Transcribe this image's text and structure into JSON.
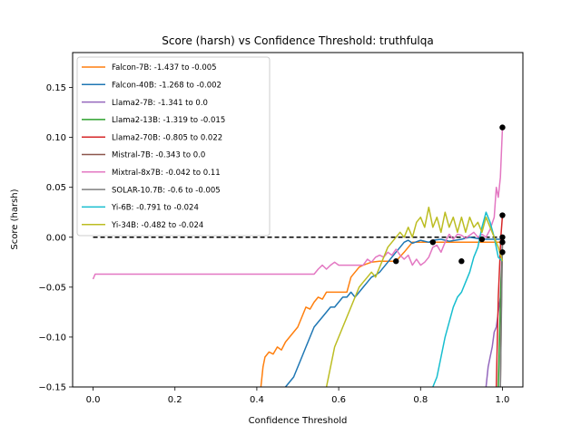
{
  "chart_data": {
    "type": "line",
    "title": "Score (harsh) vs Confidence Threshold: truthfulqa",
    "xlabel": "Confidence Threshold",
    "ylabel": "Score (harsh)",
    "xlim": [
      -0.05,
      1.05
    ],
    "ylim": [
      -0.15,
      0.185
    ],
    "x_ticks": [
      0.0,
      0.2,
      0.4,
      0.6,
      0.8,
      1.0
    ],
    "x_tick_labels": [
      "0.0",
      "0.2",
      "0.4",
      "0.6",
      "0.8",
      "1.0"
    ],
    "y_ticks": [
      -0.15,
      -0.1,
      -0.05,
      0.0,
      0.05,
      0.1,
      0.15
    ],
    "y_tick_labels": [
      "−0.15",
      "−0.10",
      "−0.05",
      "0.00",
      "0.05",
      "0.10",
      "0.15"
    ],
    "grid": false,
    "legend_position": "top-left",
    "reference_line": {
      "y": 0.0,
      "x_range": [
        0.0,
        1.0
      ],
      "style": "dashed",
      "color": "#000000"
    },
    "series": [
      {
        "name": "Falcon-7B: -1.437 to -0.005",
        "color": "#ff7f0e",
        "x": [
          0.41,
          0.415,
          0.42,
          0.43,
          0.44,
          0.45,
          0.46,
          0.47,
          0.48,
          0.49,
          0.5,
          0.51,
          0.52,
          0.53,
          0.54,
          0.55,
          0.56,
          0.57,
          0.58,
          0.6,
          0.62,
          0.63,
          0.64,
          0.65,
          0.66,
          0.68,
          0.7,
          0.72,
          0.74,
          0.76,
          0.78,
          0.8,
          0.82,
          0.83,
          0.85,
          0.9,
          0.95,
          1.0
        ],
        "y": [
          -0.15,
          -0.13,
          -0.12,
          -0.115,
          -0.117,
          -0.11,
          -0.113,
          -0.105,
          -0.1,
          -0.095,
          -0.09,
          -0.08,
          -0.07,
          -0.072,
          -0.065,
          -0.06,
          -0.062,
          -0.055,
          -0.055,
          -0.055,
          -0.055,
          -0.04,
          -0.035,
          -0.03,
          -0.028,
          -0.025,
          -0.024,
          -0.024,
          -0.024,
          -0.015,
          -0.005,
          -0.005,
          -0.005,
          -0.005,
          -0.005,
          -0.005,
          -0.005,
          -0.005
        ]
      },
      {
        "name": "Falcon-40B: -1.268 to -0.002",
        "color": "#1f77b4",
        "x": [
          0.47,
          0.48,
          0.49,
          0.5,
          0.51,
          0.52,
          0.53,
          0.54,
          0.55,
          0.56,
          0.57,
          0.58,
          0.59,
          0.6,
          0.61,
          0.62,
          0.63,
          0.64,
          0.65,
          0.66,
          0.67,
          0.68,
          0.69,
          0.7,
          0.71,
          0.72,
          0.73,
          0.74,
          0.75,
          0.76,
          0.77,
          0.78,
          0.8,
          0.82,
          0.83,
          0.85,
          0.87,
          0.9,
          0.92,
          0.95,
          1.0
        ],
        "y": [
          -0.15,
          -0.145,
          -0.14,
          -0.13,
          -0.12,
          -0.11,
          -0.1,
          -0.09,
          -0.085,
          -0.08,
          -0.075,
          -0.07,
          -0.07,
          -0.065,
          -0.06,
          -0.06,
          -0.055,
          -0.06,
          -0.055,
          -0.05,
          -0.045,
          -0.04,
          -0.038,
          -0.035,
          -0.03,
          -0.025,
          -0.02,
          -0.015,
          -0.01,
          -0.005,
          -0.003,
          -0.006,
          -0.003,
          -0.005,
          -0.003,
          -0.002,
          -0.004,
          -0.002,
          0.0,
          -0.002,
          -0.002
        ]
      },
      {
        "name": "Llama2-7B: -1.341 to 0.0",
        "color": "#9467bd",
        "x": [
          0.96,
          0.965,
          0.97,
          0.975,
          0.98,
          0.985,
          0.99,
          0.995,
          1.0
        ],
        "y": [
          -0.15,
          -0.13,
          -0.12,
          -0.11,
          -0.095,
          -0.09,
          -0.075,
          -0.06,
          0.0
        ]
      },
      {
        "name": "Llama2-13B: -1.319 to -0.015",
        "color": "#2ca02c",
        "x": [
          0.99,
          0.993,
          0.996,
          1.0
        ],
        "y": [
          -0.15,
          -0.1,
          -0.05,
          -0.015
        ]
      },
      {
        "name": "Llama2-70B: -0.805 to 0.022",
        "color": "#d62728",
        "x": [
          0.985,
          0.99,
          0.993,
          0.996,
          1.0
        ],
        "y": [
          -0.15,
          -0.06,
          -0.03,
          0.0,
          0.022
        ]
      },
      {
        "name": "Mistral-7B: -0.343 to 0.0",
        "color": "#8c564b",
        "x": [
          0.995,
          0.998,
          1.0
        ],
        "y": [
          -0.15,
          -0.05,
          0.0
        ]
      },
      {
        "name": "Mixtral-8x7B: -0.042 to 0.11",
        "color": "#e377c2",
        "x": [
          0.0,
          0.005,
          0.2,
          0.4,
          0.5,
          0.54,
          0.55,
          0.56,
          0.57,
          0.58,
          0.59,
          0.6,
          0.62,
          0.64,
          0.65,
          0.66,
          0.67,
          0.68,
          0.69,
          0.7,
          0.71,
          0.72,
          0.73,
          0.74,
          0.75,
          0.76,
          0.77,
          0.78,
          0.79,
          0.8,
          0.81,
          0.82,
          0.83,
          0.84,
          0.85,
          0.86,
          0.87,
          0.88,
          0.89,
          0.9,
          0.91,
          0.92,
          0.93,
          0.94,
          0.95,
          0.96,
          0.97,
          0.98,
          0.985,
          0.99,
          0.995,
          1.0
        ],
        "y": [
          -0.042,
          -0.037,
          -0.037,
          -0.037,
          -0.037,
          -0.037,
          -0.032,
          -0.028,
          -0.032,
          -0.028,
          -0.025,
          -0.028,
          -0.028,
          -0.028,
          -0.028,
          -0.028,
          -0.022,
          -0.025,
          -0.02,
          -0.018,
          -0.02,
          -0.015,
          -0.018,
          -0.012,
          -0.018,
          -0.022,
          -0.018,
          -0.028,
          -0.022,
          -0.028,
          -0.025,
          -0.02,
          -0.01,
          -0.008,
          -0.015,
          -0.005,
          0.003,
          -0.002,
          0.003,
          0.002,
          -0.001,
          0.002,
          0.005,
          0.0,
          0.003,
          0.0,
          0.008,
          0.02,
          0.05,
          0.04,
          0.06,
          0.11
        ]
      },
      {
        "name": "SOLAR-10.7B: -0.6 to -0.005",
        "color": "#7f7f7f",
        "x": [
          0.995,
          1.0
        ],
        "y": [
          -0.15,
          -0.005
        ]
      },
      {
        "name": "Yi-6B: -0.791 to -0.024",
        "color": "#17becf",
        "x": [
          0.83,
          0.84,
          0.85,
          0.86,
          0.87,
          0.88,
          0.89,
          0.9,
          0.91,
          0.92,
          0.93,
          0.94,
          0.95,
          0.96,
          0.97,
          0.98,
          0.99,
          1.0
        ],
        "y": [
          -0.15,
          -0.14,
          -0.12,
          -0.1,
          -0.085,
          -0.07,
          -0.06,
          -0.055,
          -0.045,
          -0.035,
          -0.02,
          -0.01,
          0.01,
          0.025,
          0.015,
          0.0,
          -0.02,
          -0.024
        ]
      },
      {
        "name": "Yi-34B: -0.482 to -0.024",
        "color": "#bcbd22",
        "x": [
          0.57,
          0.58,
          0.59,
          0.6,
          0.61,
          0.62,
          0.63,
          0.64,
          0.65,
          0.66,
          0.67,
          0.68,
          0.69,
          0.7,
          0.71,
          0.72,
          0.73,
          0.74,
          0.75,
          0.76,
          0.77,
          0.78,
          0.79,
          0.8,
          0.81,
          0.82,
          0.83,
          0.84,
          0.85,
          0.86,
          0.87,
          0.88,
          0.89,
          0.9,
          0.91,
          0.92,
          0.93,
          0.94,
          0.95,
          0.96,
          0.97,
          0.98,
          0.99,
          1.0
        ],
        "y": [
          -0.15,
          -0.13,
          -0.11,
          -0.1,
          -0.09,
          -0.08,
          -0.07,
          -0.06,
          -0.05,
          -0.045,
          -0.04,
          -0.035,
          -0.04,
          -0.03,
          -0.02,
          -0.01,
          -0.005,
          0.0,
          0.005,
          0.0,
          0.01,
          0.0,
          0.015,
          0.02,
          0.01,
          0.03,
          0.01,
          0.02,
          0.005,
          0.025,
          0.01,
          0.02,
          0.005,
          0.02,
          0.005,
          0.02,
          0.01,
          0.015,
          0.005,
          0.02,
          0.01,
          0.0,
          -0.01,
          -0.024
        ]
      }
    ],
    "markers": {
      "color": "#000000",
      "points": [
        {
          "x": 0.74,
          "y": -0.024
        },
        {
          "x": 0.83,
          "y": -0.005
        },
        {
          "x": 0.9,
          "y": -0.024
        },
        {
          "x": 0.95,
          "y": -0.002
        },
        {
          "x": 1.0,
          "y": 0.11
        },
        {
          "x": 1.0,
          "y": 0.022
        },
        {
          "x": 1.0,
          "y": 0.0
        },
        {
          "x": 1.0,
          "y": -0.005
        },
        {
          "x": 1.0,
          "y": -0.015
        }
      ]
    }
  }
}
